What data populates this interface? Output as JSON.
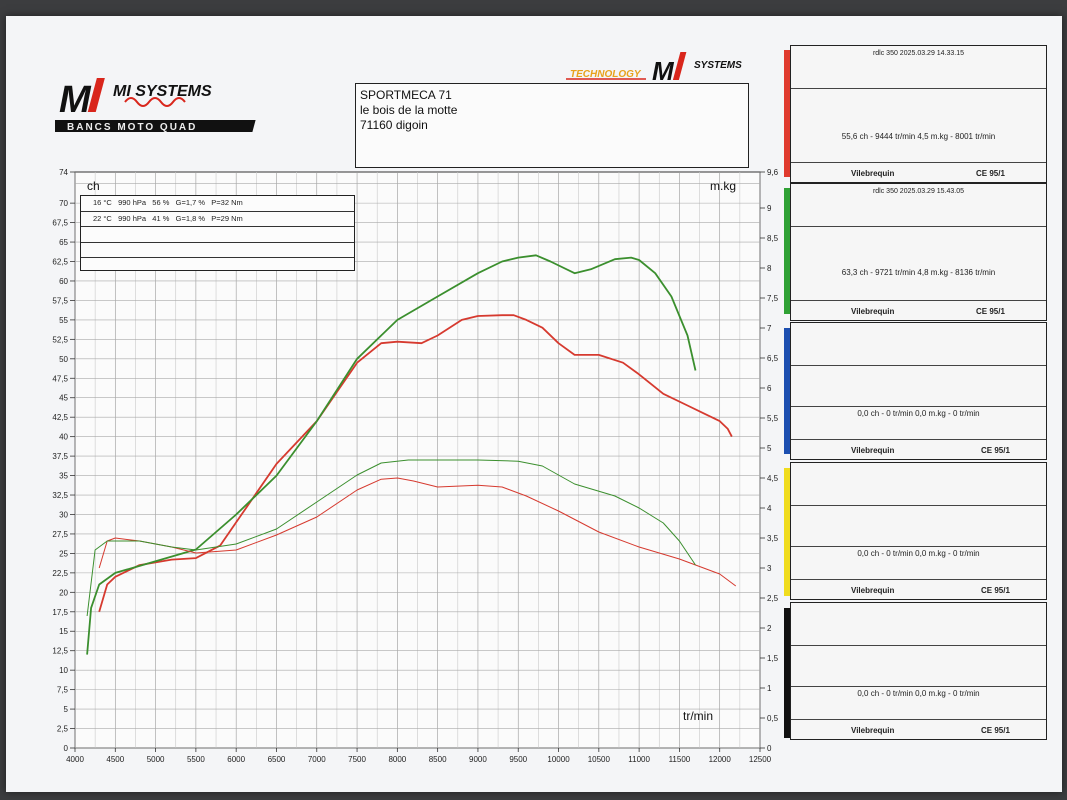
{
  "header": {
    "logo_left_text": "MI SYSTEMS",
    "logo_left_sub": "BANCS MOTO QUAD",
    "logo_right_text": "TECHNOLOGY",
    "address_lines": [
      "SPORTMECA  71",
      "le bois de la motte",
      "71160 digoin"
    ]
  },
  "meteo": [
    "16 °C   990 hPa   56 %   G=1,7 %   P=32 Nm",
    "22 °C   990 hPa   41 %   G=1,8 %   P=29 Nm",
    "",
    "",
    ""
  ],
  "panels": [
    {
      "color": "#e03a2e",
      "header": "rdlc 350    2025.03.29 14.33.15",
      "values": "55,6 ch - 9444 tr/min       4,5 m.kg - 8001 tr/min",
      "foot_left": "Vilebrequin",
      "foot_right": "CE 95/1"
    },
    {
      "color": "#2fa135",
      "header": "rdlc 350    2025.03.29 15.43.05",
      "values": "63,3 ch - 9721 tr/min       4,8 m.kg - 8136 tr/min",
      "foot_left": "Vilebrequin",
      "foot_right": "CE 95/1"
    },
    {
      "color": "#1c4fb0",
      "header": "",
      "values": "0,0 ch - 0 tr/min       0,0 m.kg - 0 tr/min",
      "foot_left": "Vilebrequin",
      "foot_right": "CE 95/1"
    },
    {
      "color": "#f0dc1e",
      "header": "",
      "values": "0,0 ch - 0 tr/min       0,0 m.kg - 0 tr/min",
      "foot_left": "Vilebrequin",
      "foot_right": "CE 95/1"
    },
    {
      "color": "#111111",
      "header": "",
      "values": "0,0 ch - 0 tr/min       0,0 m.kg - 0 tr/min",
      "foot_left": "Vilebrequin",
      "foot_right": "CE 95/1"
    }
  ],
  "chart_data": {
    "type": "line",
    "left_axis_label": "ch",
    "right_axis_label": "m.kg",
    "x_axis_label": "tr/min",
    "xlim": [
      4000,
      12500
    ],
    "ylim_left": [
      0,
      74
    ],
    "ylim_right": [
      0,
      9.6
    ],
    "x_ticks": [
      "4000",
      "4500",
      "5000",
      "5500",
      "6000",
      "6500",
      "7000",
      "7500",
      "8000",
      "8500",
      "9000",
      "9500",
      "10000",
      "10500",
      "11000",
      "11500",
      "12000",
      "12500"
    ],
    "y_ticks_left": [
      "0",
      "2,5",
      "5",
      "7,5",
      "10",
      "12,5",
      "15",
      "17,5",
      "20",
      "22,5",
      "25",
      "27,5",
      "30",
      "32,5",
      "35",
      "37,5",
      "40",
      "42,5",
      "45",
      "47,5",
      "50",
      "52,5",
      "55",
      "57,5",
      "60",
      "62,5",
      "65",
      "67,5",
      "70",
      "74"
    ],
    "y_ticks_right": [
      "0",
      "0,5",
      "1",
      "1,5",
      "2",
      "2,5",
      "3",
      "3,5",
      "4",
      "4,5",
      "5",
      "5,5",
      "6",
      "6,5",
      "7",
      "7,5",
      "8",
      "8,5",
      "9",
      "9,6"
    ],
    "series": [
      {
        "name": "rdlc 350 2025.03.29 14.33.15 ch",
        "color": "#d63a2f",
        "axis": "left",
        "x": [
          4300,
          4400,
          4500,
          4800,
          5200,
          5500,
          5800,
          6000,
          6500,
          7000,
          7500,
          7800,
          8000,
          8300,
          8500,
          8800,
          9000,
          9300,
          9444,
          9600,
          9800,
          10000,
          10200,
          10500,
          10800,
          11000,
          11300,
          11600,
          11800,
          12000,
          12100,
          12150
        ],
        "y": [
          17.5,
          21,
          22,
          23.5,
          24.2,
          24.4,
          26,
          29,
          36.5,
          42,
          49.5,
          52,
          52.2,
          52,
          53,
          55,
          55.5,
          55.6,
          55.6,
          55,
          54,
          52,
          50.5,
          50.5,
          49.5,
          48,
          45.5,
          44,
          43,
          42,
          41,
          40
        ]
      },
      {
        "name": "rdlc 350 2025.03.29 15.43.05 ch",
        "color": "#3b8f2e",
        "axis": "left",
        "x": [
          4150,
          4200,
          4300,
          4500,
          5000,
          5500,
          6000,
          6500,
          7000,
          7500,
          7800,
          8000,
          8500,
          9000,
          9300,
          9500,
          9721,
          9900,
          10200,
          10400,
          10700,
          10900,
          11000,
          11200,
          11400,
          11600,
          11700
        ],
        "y": [
          12,
          18,
          21,
          22.5,
          24,
          25.5,
          30,
          35,
          42,
          50,
          53,
          55,
          58,
          61,
          62.5,
          63,
          63.3,
          62.5,
          61,
          61.5,
          62.8,
          63,
          62.7,
          61,
          58,
          53,
          48.5
        ]
      },
      {
        "name": "rdlc 350 2025.03.29 14.33.15 m.kg",
        "color": "#d63a2f",
        "axis": "right",
        "x": [
          4300,
          4400,
          4500,
          4800,
          5200,
          5500,
          6000,
          6500,
          7000,
          7500,
          7800,
          8001,
          8200,
          8500,
          9000,
          9300,
          9600,
          10000,
          10500,
          11000,
          11500,
          12000,
          12200
        ],
        "y": [
          3.0,
          3.45,
          3.5,
          3.45,
          3.35,
          3.25,
          3.3,
          3.55,
          3.85,
          4.3,
          4.48,
          4.5,
          4.45,
          4.35,
          4.38,
          4.35,
          4.2,
          3.95,
          3.6,
          3.35,
          3.15,
          2.9,
          2.7
        ]
      },
      {
        "name": "rdlc 350 2025.03.29 15.43.05 m.kg",
        "color": "#3b8f2e",
        "axis": "right",
        "x": [
          4150,
          4250,
          4400,
          4800,
          5200,
          5500,
          6000,
          6500,
          7000,
          7500,
          7800,
          8136,
          8500,
          9000,
          9500,
          9800,
          10200,
          10700,
          11000,
          11300,
          11500,
          11700
        ],
        "y": [
          2.2,
          3.3,
          3.45,
          3.45,
          3.35,
          3.3,
          3.4,
          3.65,
          4.1,
          4.55,
          4.75,
          4.8,
          4.8,
          4.8,
          4.78,
          4.7,
          4.4,
          4.2,
          4.0,
          3.75,
          3.45,
          3.05
        ]
      }
    ]
  }
}
